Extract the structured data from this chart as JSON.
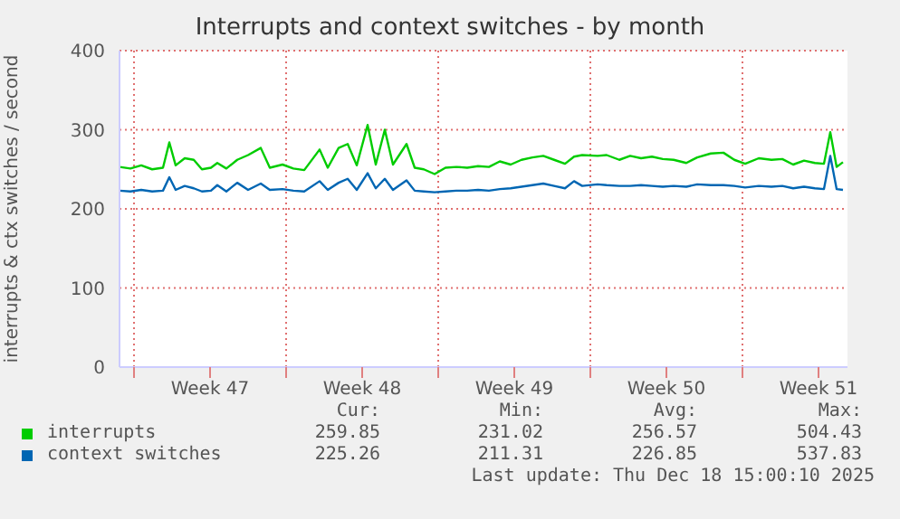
{
  "chart_data": {
    "type": "line",
    "title": "Interrupts and context switches - by month",
    "ylabel": "interrupts & ctx switches / second",
    "x": [
      "2025-11-15T08:00",
      "2025-11-15T20:00",
      "2025-11-16T08:00",
      "2025-11-16T20:00",
      "2025-11-17T08:00",
      "2025-11-17T15:00",
      "2025-11-17T22:00",
      "2025-11-18T08:00",
      "2025-11-18T18:00",
      "2025-11-19T03:00",
      "2025-11-19T13:00",
      "2025-11-19T20:00",
      "2025-11-20T06:00",
      "2025-11-20T18:00",
      "2025-11-21T06:00",
      "2025-11-21T20:00",
      "2025-11-22T06:00",
      "2025-11-22T20:00",
      "2025-11-23T08:00",
      "2025-11-23T20:00",
      "2025-11-24T13:00",
      "2025-11-24T22:00",
      "2025-11-25T10:00",
      "2025-11-25T20:00",
      "2025-11-26T06:00",
      "2025-11-26T18:00",
      "2025-11-27T03:00",
      "2025-11-27T13:00",
      "2025-11-27T22:00",
      "2025-11-28T13:00",
      "2025-11-28T22:00",
      "2025-11-29T08:00",
      "2025-11-29T20:00",
      "2025-11-30T08:00",
      "2025-11-30T20:00",
      "2025-12-01T08:00",
      "2025-12-01T20:00",
      "2025-12-02T08:00",
      "2025-12-02T20:00",
      "2025-12-03T08:00",
      "2025-12-03T20:00",
      "2025-12-04T08:00",
      "2025-12-04T20:00",
      "2025-12-05T08:00",
      "2025-12-05T20:00",
      "2025-12-06T06:00",
      "2025-12-06T15:00",
      "2025-12-07T08:00",
      "2025-12-07T18:00",
      "2025-12-08T08:00",
      "2025-12-08T20:00",
      "2025-12-09T08:00",
      "2025-12-09T20:00",
      "2025-12-10T08:00",
      "2025-12-10T20:00",
      "2025-12-11T10:00",
      "2025-12-11T22:00",
      "2025-12-12T13:00",
      "2025-12-13T03:00",
      "2025-12-13T15:00",
      "2025-12-14T03:00",
      "2025-12-14T18:00",
      "2025-12-15T08:00",
      "2025-12-15T20:00",
      "2025-12-16T08:00",
      "2025-12-16T20:00",
      "2025-12-17T08:00",
      "2025-12-17T18:00",
      "2025-12-18T01:00",
      "2025-12-18T08:00",
      "2025-12-18T15:00"
    ],
    "series": [
      {
        "name": "interrupts",
        "color": "#00cc00",
        "values": [
          253,
          251,
          255,
          250,
          252,
          284,
          255,
          264,
          262,
          250,
          252,
          258,
          251,
          262,
          268,
          277,
          252,
          256,
          251,
          249,
          275,
          252,
          277,
          282,
          255,
          306,
          256,
          300,
          256,
          282,
          252,
          250,
          244,
          252,
          253,
          252,
          254,
          253,
          260,
          256,
          262,
          265,
          267,
          262,
          257,
          266,
          268,
          267,
          268,
          262,
          267,
          264,
          266,
          263,
          262,
          258,
          265,
          270,
          271,
          262,
          257,
          264,
          262,
          263,
          256,
          261,
          258,
          257,
          297,
          253,
          259
        ]
      },
      {
        "name": "context switches",
        "color": "#0066b3",
        "values": [
          223,
          222,
          224,
          222,
          223,
          240,
          224,
          229,
          226,
          222,
          223,
          230,
          222,
          233,
          224,
          232,
          224,
          225,
          223,
          222,
          235,
          224,
          233,
          238,
          224,
          245,
          226,
          238,
          224,
          236,
          223,
          222,
          221,
          222,
          223,
          223,
          224,
          223,
          225,
          226,
          228,
          230,
          232,
          229,
          226,
          235,
          229,
          231,
          230,
          229,
          229,
          230,
          229,
          228,
          229,
          228,
          231,
          230,
          230,
          229,
          227,
          229,
          228,
          229,
          226,
          228,
          226,
          225,
          267,
          225,
          224
        ]
      }
    ],
    "xlim": [
      "2025-11-15T08:00",
      "2025-12-18T20:00"
    ],
    "xticks": [
      {
        "value": "2025-11-16T00:00",
        "label": null
      },
      {
        "value": "2025-11-19T12:00",
        "label": "Week 47"
      },
      {
        "value": "2025-11-23T00:00",
        "label": null
      },
      {
        "value": "2025-11-26T12:00",
        "label": "Week 48"
      },
      {
        "value": "2025-11-30T00:00",
        "label": null
      },
      {
        "value": "2025-12-03T12:00",
        "label": "Week 49"
      },
      {
        "value": "2025-12-07T00:00",
        "label": null
      },
      {
        "value": "2025-12-10T12:00",
        "label": "Week 50"
      },
      {
        "value": "2025-12-14T00:00",
        "label": null
      },
      {
        "value": "2025-12-17T12:00",
        "label": "Week 51"
      }
    ],
    "ylim": [
      0,
      400
    ],
    "yticks": [
      0,
      100,
      200,
      300,
      400
    ],
    "grid": true,
    "legend": "bottom left",
    "marker": "none",
    "line_style": "solid",
    "annotations": [
      "Cur:",
      "Min:",
      "Avg:",
      "Max:",
      "259.85",
      "231.02",
      "256.57",
      "504.43",
      "225.26",
      "211.31",
      "226.85",
      "537.83",
      "Last update: Thu Dec 18 15:00:10 2025"
    ]
  }
}
